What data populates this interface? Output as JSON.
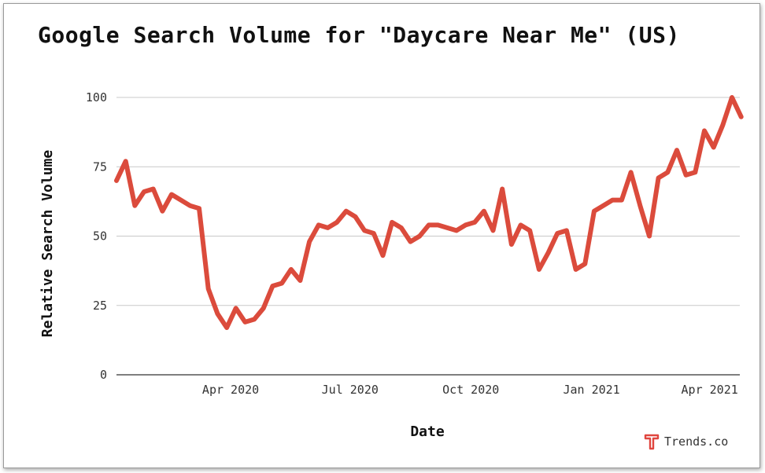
{
  "brand": {
    "name": "Trends.co",
    "accent": "#e0463f"
  },
  "chart_data": {
    "type": "line",
    "title": "Google Search Volume for \"Daycare Near Me\" (US)",
    "xlabel": "Date",
    "ylabel": "Relative Search Volume",
    "ylim": [
      0,
      100
    ],
    "yticks": [
      0,
      25,
      50,
      75,
      100
    ],
    "xticks": [
      {
        "label": "Apr 2020",
        "date": "2020-04-01"
      },
      {
        "label": "Jul 2020",
        "date": "2020-07-01"
      },
      {
        "label": "Oct 2020",
        "date": "2020-10-01"
      },
      {
        "label": "Jan 2021",
        "date": "2021-01-01"
      },
      {
        "label": "Apr 2021",
        "date": "2021-04-01"
      }
    ],
    "xrange": [
      "2020-01-05",
      "2021-04-18"
    ],
    "grid": true,
    "series": [
      {
        "color": "#db4b3c",
        "points": [
          [
            "2020-01-05",
            70
          ],
          [
            "2020-01-12",
            77
          ],
          [
            "2020-01-19",
            61
          ],
          [
            "2020-01-26",
            66
          ],
          [
            "2020-02-02",
            67
          ],
          [
            "2020-02-09",
            59
          ],
          [
            "2020-02-16",
            65
          ],
          [
            "2020-02-23",
            63
          ],
          [
            "2020-03-01",
            61
          ],
          [
            "2020-03-08",
            60
          ],
          [
            "2020-03-15",
            31
          ],
          [
            "2020-03-22",
            22
          ],
          [
            "2020-03-29",
            17
          ],
          [
            "2020-04-05",
            24
          ],
          [
            "2020-04-12",
            19
          ],
          [
            "2020-04-19",
            20
          ],
          [
            "2020-04-26",
            24
          ],
          [
            "2020-05-03",
            32
          ],
          [
            "2020-05-10",
            33
          ],
          [
            "2020-05-17",
            38
          ],
          [
            "2020-05-24",
            34
          ],
          [
            "2020-05-31",
            48
          ],
          [
            "2020-06-07",
            54
          ],
          [
            "2020-06-14",
            53
          ],
          [
            "2020-06-21",
            55
          ],
          [
            "2020-06-28",
            59
          ],
          [
            "2020-07-05",
            57
          ],
          [
            "2020-07-12",
            52
          ],
          [
            "2020-07-19",
            51
          ],
          [
            "2020-07-26",
            43
          ],
          [
            "2020-08-02",
            55
          ],
          [
            "2020-08-09",
            53
          ],
          [
            "2020-08-16",
            48
          ],
          [
            "2020-08-23",
            50
          ],
          [
            "2020-08-30",
            54
          ],
          [
            "2020-09-06",
            54
          ],
          [
            "2020-09-13",
            53
          ],
          [
            "2020-09-20",
            52
          ],
          [
            "2020-09-27",
            54
          ],
          [
            "2020-10-04",
            55
          ],
          [
            "2020-10-11",
            59
          ],
          [
            "2020-10-18",
            52
          ],
          [
            "2020-10-25",
            67
          ],
          [
            "2020-11-01",
            47
          ],
          [
            "2020-11-08",
            54
          ],
          [
            "2020-11-15",
            52
          ],
          [
            "2020-11-22",
            38
          ],
          [
            "2020-11-29",
            44
          ],
          [
            "2020-12-06",
            51
          ],
          [
            "2020-12-13",
            52
          ],
          [
            "2020-12-20",
            38
          ],
          [
            "2020-12-27",
            40
          ],
          [
            "2021-01-03",
            59
          ],
          [
            "2021-01-10",
            61
          ],
          [
            "2021-01-17",
            63
          ],
          [
            "2021-01-24",
            63
          ],
          [
            "2021-01-31",
            73
          ],
          [
            "2021-02-07",
            61
          ],
          [
            "2021-02-14",
            50
          ],
          [
            "2021-02-21",
            71
          ],
          [
            "2021-02-28",
            73
          ],
          [
            "2021-03-07",
            81
          ],
          [
            "2021-03-14",
            72
          ],
          [
            "2021-03-21",
            73
          ],
          [
            "2021-03-28",
            88
          ],
          [
            "2021-04-04",
            82
          ],
          [
            "2021-04-11",
            90
          ],
          [
            "2021-04-18",
            100
          ],
          [
            "2021-04-25",
            93
          ]
        ]
      }
    ]
  }
}
